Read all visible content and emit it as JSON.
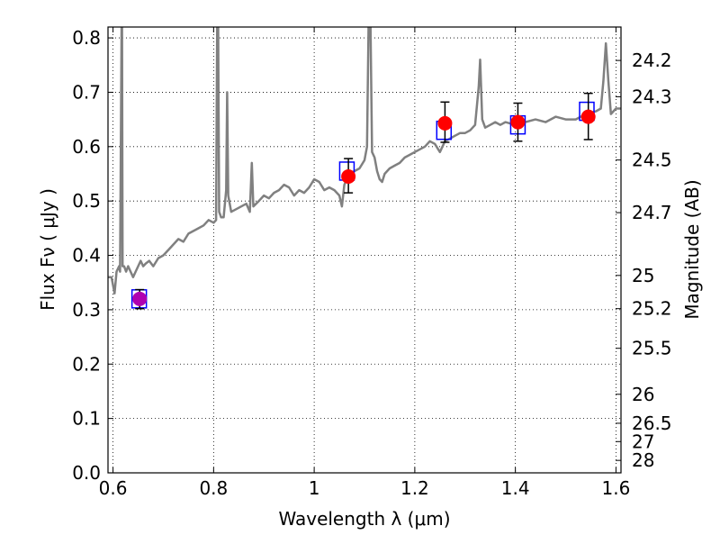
{
  "chart_data": {
    "type": "scatter",
    "xlabel": "Wavelength  λ (μm)",
    "ylabel": "Flux  Fν  ( μJy )",
    "ylabel_right": "Magnitude (AB)",
    "xlim": [
      0.59,
      1.61
    ],
    "ylim": [
      0.0,
      0.82
    ],
    "grid": true,
    "x_ticks": [
      0.6,
      0.8,
      1.0,
      1.2,
      1.4,
      1.6
    ],
    "x_tick_labels": [
      "0.6",
      "0.8",
      "1",
      "1.2",
      "1.4",
      "1.6"
    ],
    "y_ticks": [
      0.0,
      0.1,
      0.2,
      0.3,
      0.4,
      0.5,
      0.6,
      0.7,
      0.8
    ],
    "y_tick_labels": [
      "0.0",
      "0.1",
      "0.2",
      "0.3",
      "0.4",
      "0.5",
      "0.6",
      "0.7",
      "0.8"
    ],
    "right_ticks": [
      {
        "label": "24.2",
        "flux": 0.7585
      },
      {
        "label": "24.3",
        "flux": 0.6918
      },
      {
        "label": "24.5",
        "flux": 0.5754
      },
      {
        "label": "24.7",
        "flux": 0.4786
      },
      {
        "label": "25",
        "flux": 0.3631
      },
      {
        "label": "25.2",
        "flux": 0.302
      },
      {
        "label": "25.5",
        "flux": 0.2291
      },
      {
        "label": "26",
        "flux": 0.1445
      },
      {
        "label": "26.5",
        "flux": 0.0912
      },
      {
        "label": "27",
        "flux": 0.0575
      },
      {
        "label": "28",
        "flux": 0.0229
      }
    ],
    "series": [
      {
        "type": "line",
        "color": "#808080",
        "points": [
          [
            0.59,
            0.36
          ],
          [
            0.597,
            0.36
          ],
          [
            0.603,
            0.33
          ],
          [
            0.607,
            0.37
          ],
          [
            0.612,
            0.38
          ],
          [
            0.614,
            0.37
          ],
          [
            0.617,
            0.82
          ],
          [
            0.618,
            0.82
          ],
          [
            0.619,
            0.38
          ],
          [
            0.622,
            0.38
          ],
          [
            0.626,
            0.37
          ],
          [
            0.63,
            0.38
          ],
          [
            0.635,
            0.37
          ],
          [
            0.64,
            0.36
          ],
          [
            0.645,
            0.37
          ],
          [
            0.65,
            0.38
          ],
          [
            0.655,
            0.39
          ],
          [
            0.66,
            0.38
          ],
          [
            0.665,
            0.385
          ],
          [
            0.672,
            0.39
          ],
          [
            0.68,
            0.38
          ],
          [
            0.69,
            0.395
          ],
          [
            0.7,
            0.4
          ],
          [
            0.71,
            0.41
          ],
          [
            0.72,
            0.42
          ],
          [
            0.73,
            0.43
          ],
          [
            0.74,
            0.425
          ],
          [
            0.75,
            0.44
          ],
          [
            0.76,
            0.445
          ],
          [
            0.77,
            0.45
          ],
          [
            0.78,
            0.455
          ],
          [
            0.79,
            0.465
          ],
          [
            0.8,
            0.46
          ],
          [
            0.805,
            0.465
          ],
          [
            0.807,
            0.82
          ],
          [
            0.809,
            0.82
          ],
          [
            0.811,
            0.48
          ],
          [
            0.815,
            0.47
          ],
          [
            0.82,
            0.47
          ],
          [
            0.825,
            0.52
          ],
          [
            0.827,
            0.7
          ],
          [
            0.829,
            0.51
          ],
          [
            0.835,
            0.48
          ],
          [
            0.845,
            0.485
          ],
          [
            0.855,
            0.49
          ],
          [
            0.865,
            0.495
          ],
          [
            0.872,
            0.48
          ],
          [
            0.876,
            0.57
          ],
          [
            0.879,
            0.49
          ],
          [
            0.89,
            0.5
          ],
          [
            0.9,
            0.51
          ],
          [
            0.91,
            0.505
          ],
          [
            0.92,
            0.515
          ],
          [
            0.93,
            0.52
          ],
          [
            0.94,
            0.53
          ],
          [
            0.95,
            0.525
          ],
          [
            0.96,
            0.51
          ],
          [
            0.97,
            0.52
          ],
          [
            0.98,
            0.515
          ],
          [
            0.99,
            0.525
          ],
          [
            1.0,
            0.54
          ],
          [
            1.01,
            0.535
          ],
          [
            1.02,
            0.52
          ],
          [
            1.03,
            0.525
          ],
          [
            1.04,
            0.52
          ],
          [
            1.05,
            0.51
          ],
          [
            1.055,
            0.49
          ],
          [
            1.06,
            0.53
          ],
          [
            1.07,
            0.55
          ],
          [
            1.08,
            0.555
          ],
          [
            1.09,
            0.56
          ],
          [
            1.1,
            0.575
          ],
          [
            1.105,
            0.6
          ],
          [
            1.108,
            0.82
          ],
          [
            1.112,
            0.82
          ],
          [
            1.115,
            0.59
          ],
          [
            1.12,
            0.58
          ],
          [
            1.125,
            0.555
          ],
          [
            1.13,
            0.54
          ],
          [
            1.135,
            0.535
          ],
          [
            1.14,
            0.55
          ],
          [
            1.15,
            0.56
          ],
          [
            1.16,
            0.565
          ],
          [
            1.17,
            0.57
          ],
          [
            1.18,
            0.58
          ],
          [
            1.19,
            0.585
          ],
          [
            1.2,
            0.59
          ],
          [
            1.21,
            0.595
          ],
          [
            1.22,
            0.6
          ],
          [
            1.23,
            0.61
          ],
          [
            1.24,
            0.605
          ],
          [
            1.25,
            0.59
          ],
          [
            1.26,
            0.61
          ],
          [
            1.27,
            0.615
          ],
          [
            1.28,
            0.62
          ],
          [
            1.29,
            0.625
          ],
          [
            1.3,
            0.625
          ],
          [
            1.31,
            0.63
          ],
          [
            1.32,
            0.64
          ],
          [
            1.327,
            0.71
          ],
          [
            1.33,
            0.76
          ],
          [
            1.334,
            0.65
          ],
          [
            1.34,
            0.635
          ],
          [
            1.35,
            0.64
          ],
          [
            1.36,
            0.645
          ],
          [
            1.37,
            0.64
          ],
          [
            1.38,
            0.645
          ],
          [
            1.4,
            0.64
          ],
          [
            1.42,
            0.645
          ],
          [
            1.44,
            0.65
          ],
          [
            1.46,
            0.645
          ],
          [
            1.48,
            0.655
          ],
          [
            1.5,
            0.65
          ],
          [
            1.52,
            0.65
          ],
          [
            1.54,
            0.66
          ],
          [
            1.56,
            0.665
          ],
          [
            1.57,
            0.67
          ],
          [
            1.575,
            0.72
          ],
          [
            1.58,
            0.79
          ],
          [
            1.585,
            0.72
          ],
          [
            1.59,
            0.66
          ],
          [
            1.6,
            0.67
          ],
          [
            1.61,
            0.67
          ]
        ]
      },
      {
        "type": "square",
        "color": "#0000ff",
        "points": [
          [
            0.652,
            0.32
          ],
          [
            1.065,
            0.555
          ],
          [
            1.258,
            0.63
          ],
          [
            1.405,
            0.64
          ],
          [
            1.542,
            0.665
          ]
        ]
      },
      {
        "type": "point",
        "color": "#ff0000",
        "points": [
          {
            "x": 1.068,
            "y": 0.545,
            "ylow": 0.515,
            "yhigh": 0.578
          },
          {
            "x": 1.26,
            "y": 0.643,
            "ylow": 0.608,
            "yhigh": 0.682
          },
          {
            "x": 1.405,
            "y": 0.645,
            "ylow": 0.61,
            "yhigh": 0.68
          },
          {
            "x": 1.545,
            "y": 0.655,
            "ylow": 0.613,
            "yhigh": 0.698
          }
        ]
      },
      {
        "type": "point",
        "color": "#b000b0",
        "points": [
          {
            "x": 0.653,
            "y": 0.32,
            "ylow": 0.302,
            "yhigh": 0.337
          }
        ]
      }
    ]
  }
}
